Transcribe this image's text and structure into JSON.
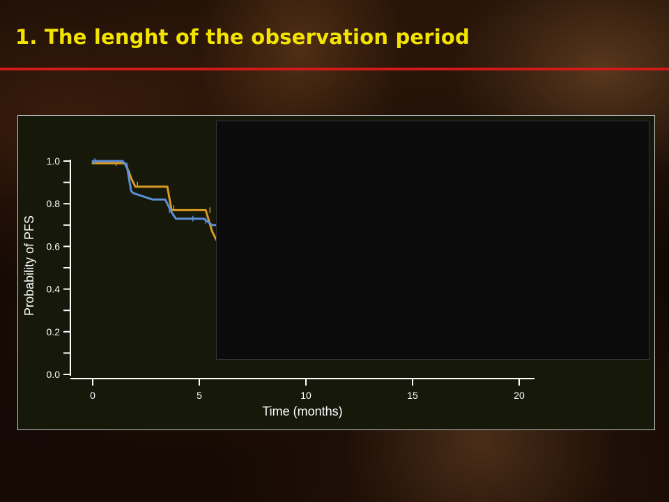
{
  "slide": {
    "title": "1. The lenght of the observation period"
  },
  "colors": {
    "title": "#f2e400",
    "rule": "#d11a1a",
    "series_orange": "#d89a24",
    "series_blue": "#5b8fd8"
  },
  "chart_data": {
    "type": "line",
    "title": "",
    "xlabel": "Time (months)",
    "ylabel": "Probability of PFS",
    "xlim": [
      0,
      20
    ],
    "ylim": [
      0,
      1
    ],
    "xticks": [
      0,
      5,
      10,
      15,
      20
    ],
    "xtick_labels": [
      "0",
      "5",
      "10",
      "15",
      "20"
    ],
    "yticks": [
      0,
      0.2,
      0.4,
      0.6,
      0.8,
      1
    ],
    "ytick_labels": [
      "0.0",
      "0.2",
      "0.4",
      "0.6",
      "0.8",
      "1.0"
    ],
    "grid": false,
    "legend": "none",
    "series": [
      {
        "color": "#d89a24",
        "points": [
          [
            0,
            0.99
          ],
          [
            1.5,
            0.99
          ],
          [
            1.7,
            0.95
          ],
          [
            1.8,
            0.92
          ],
          [
            2.0,
            0.88
          ],
          [
            3.5,
            0.88
          ],
          [
            3.7,
            0.77
          ],
          [
            5.3,
            0.77
          ],
          [
            5.6,
            0.67
          ],
          [
            5.8,
            0.63
          ]
        ],
        "censored": [
          [
            1.1,
            0.99
          ],
          [
            2.1,
            0.89
          ],
          [
            3.8,
            0.78
          ],
          [
            5.5,
            0.77
          ]
        ]
      },
      {
        "color": "#5b8fd8",
        "points": [
          [
            0,
            1.0
          ],
          [
            1.4,
            1.0
          ],
          [
            1.6,
            0.98
          ],
          [
            1.7,
            0.92
          ],
          [
            1.8,
            0.86
          ],
          [
            1.9,
            0.85
          ],
          [
            2.8,
            0.82
          ],
          [
            3.4,
            0.82
          ],
          [
            3.7,
            0.76
          ],
          [
            3.9,
            0.73
          ],
          [
            5.2,
            0.73
          ],
          [
            5.6,
            0.7
          ],
          [
            5.8,
            0.7
          ]
        ],
        "censored": [
          [
            0.1,
            1.0
          ],
          [
            1.6,
            0.98
          ],
          [
            1.8,
            0.87
          ],
          [
            3.6,
            0.77
          ],
          [
            4.7,
            0.73
          ],
          [
            5.3,
            0.72
          ]
        ]
      }
    ]
  }
}
